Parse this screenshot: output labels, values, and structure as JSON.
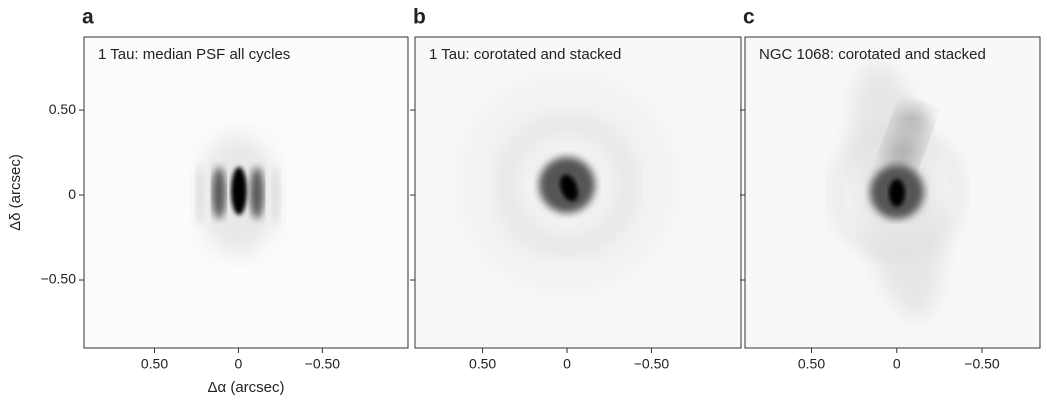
{
  "chart_data": [
    {
      "type": "image",
      "panel_label": "a",
      "title": "1 Tau: median PSF all cycles",
      "xlabel": "Δα (arcsec)",
      "ylabel": "Δδ (arcsec)",
      "xlim": [
        0.92,
        -1.01
      ],
      "ylim": [
        -0.9,
        0.93
      ],
      "xticks": [
        {
          "value": 0.5,
          "label": "0.50"
        },
        0,
        {
          "value": -0.5,
          "label": "−0.50"
        }
      ],
      "yticks": [
        {
          "value": 0.5,
          "label": "0.50"
        },
        0,
        {
          "value": -0.5,
          "label": "−0.50"
        }
      ]
    },
    {
      "type": "image",
      "panel_label": "b",
      "title": "1 Tau: corotated and stacked",
      "xlim": [
        0.9,
        -1.03
      ],
      "ylim": [
        -0.9,
        0.93
      ],
      "xticks": [
        {
          "value": 0.5,
          "label": "0.50"
        },
        0,
        {
          "value": -0.5,
          "label": "−0.50"
        }
      ],
      "yticks": [
        0.5,
        0,
        -0.5
      ]
    },
    {
      "type": "image",
      "panel_label": "c",
      "title": "NGC 1068: corotated and stacked",
      "xlim": [
        0.89,
        -0.84
      ],
      "ylim": [
        -0.9,
        0.93
      ],
      "xticks": [
        {
          "value": 0.5,
          "label": "0.50"
        },
        0,
        {
          "value": -0.5,
          "label": "−0.50"
        }
      ],
      "yticks": [
        0.5,
        0,
        -0.5
      ]
    }
  ]
}
